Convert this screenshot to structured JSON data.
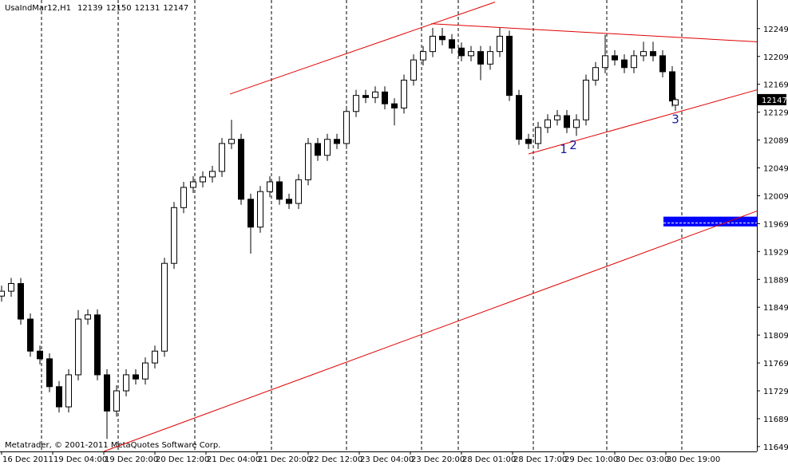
{
  "chart_data": {
    "type": "candlestick",
    "symbol": "UsaIndMar12,H1",
    "watermark": "Metatrader, © 2001-2011 MetaQuotes Software Corp.",
    "x": [
      0,
      3,
      6,
      9,
      12,
      15,
      18,
      21,
      24,
      27,
      30,
      33,
      36,
      39,
      42,
      45,
      48,
      51,
      54,
      57,
      60,
      63,
      66,
      69,
      72,
      75,
      78,
      81,
      84,
      87,
      90,
      93,
      96,
      99,
      102,
      105,
      108,
      111,
      114,
      117,
      120,
      123,
      126,
      129,
      132,
      135,
      138,
      141,
      144,
      147,
      150,
      153,
      156,
      159,
      162,
      165,
      168,
      171,
      174,
      177,
      180,
      183,
      186,
      189,
      192,
      195,
      198,
      201,
      204,
      207,
      210,
      211
    ],
    "open": [
      11865,
      11872,
      11883,
      11832,
      11786,
      11775,
      11735,
      11706,
      11752,
      11832,
      11838,
      11752,
      11700,
      11729,
      11752,
      11746,
      11769,
      11786,
      11912,
      11992,
      12021,
      12029,
      12036,
      12044,
      12084,
      12090,
      12004,
      11964,
      12015,
      12029,
      12004,
      11998,
      12032,
      12084,
      12067,
      12090,
      12084,
      12130,
      12153,
      12150,
      12158,
      12141,
      12135,
      12175,
      12204,
      12216,
      12238,
      12233,
      12221,
      12210,
      12216,
      12198,
      12216,
      12238,
      12153,
      12090,
      12084,
      12107,
      12118,
      12124,
      12107,
      12118,
      12175,
      12193,
      12210,
      12204,
      12193,
      12210,
      12216,
      12210,
      12187,
      12139
    ],
    "high": [
      11880,
      11891,
      11891,
      11840,
      11794,
      11783,
      11743,
      11760,
      11845,
      11846,
      11846,
      11760,
      11737,
      11760,
      11760,
      11777,
      11794,
      11920,
      12000,
      12029,
      12037,
      12044,
      12052,
      12092,
      12118,
      12098,
      12012,
      12023,
      12037,
      12037,
      12012,
      12040,
      12092,
      12092,
      12098,
      12098,
      12138,
      12161,
      12161,
      12166,
      12166,
      12149,
      12183,
      12212,
      12224,
      12250,
      12250,
      12241,
      12229,
      12224,
      12224,
      12224,
      12250,
      12246,
      12161,
      12098,
      12115,
      12126,
      12132,
      12132,
      12126,
      12183,
      12201,
      12240,
      12218,
      12212,
      12218,
      12230,
      12230,
      12218,
      12195,
      12150
    ],
    "low": [
      11857,
      11864,
      11824,
      11778,
      11767,
      11727,
      11698,
      11698,
      11744,
      11824,
      11744,
      11660,
      11692,
      11721,
      11738,
      11738,
      11761,
      11778,
      11904,
      11984,
      12013,
      12021,
      12028,
      12036,
      12076,
      11996,
      11926,
      11956,
      12007,
      11996,
      11990,
      11990,
      12024,
      12059,
      12059,
      12076,
      12076,
      12122,
      12142,
      12142,
      12133,
      12110,
      12127,
      12167,
      12196,
      12208,
      12225,
      12213,
      12202,
      12202,
      12175,
      12190,
      12208,
      12145,
      12082,
      12076,
      12076,
      12099,
      12110,
      12099,
      12095,
      12110,
      12167,
      12185,
      12196,
      12185,
      12185,
      12202,
      12202,
      12179,
      12137,
      12131
    ],
    "close": [
      11872,
      11883,
      11832,
      11786,
      11775,
      11735,
      11706,
      11752,
      11832,
      11838,
      11752,
      11700,
      11729,
      11752,
      11746,
      11769,
      11786,
      11912,
      11992,
      12021,
      12029,
      12036,
      12044,
      12084,
      12090,
      12004,
      11964,
      12015,
      12029,
      12004,
      11998,
      12032,
      12084,
      12067,
      12090,
      12084,
      12130,
      12153,
      12150,
      12158,
      12141,
      12135,
      12175,
      12204,
      12216,
      12238,
      12233,
      12221,
      12210,
      12216,
      12198,
      12216,
      12238,
      12153,
      12090,
      12084,
      12107,
      12118,
      12124,
      12107,
      12118,
      12175,
      12193,
      12210,
      12204,
      12193,
      12210,
      12216,
      12210,
      12187,
      12145,
      12147
    ],
    "up_color": "#ffffff",
    "down_color": "#000000",
    "wick_color": "#000000",
    "xlim": [
      0,
      236.5
    ],
    "xticks": [
      {
        "value": 0,
        "label": "16 Dec 2011"
      },
      {
        "value": 16,
        "label": "19 Dec 04:00"
      },
      {
        "value": 32,
        "label": "19 Dec 20:00"
      },
      {
        "value": 48,
        "label": "20 Dec 12:00"
      },
      {
        "value": 64,
        "label": "21 Dec 04:00"
      },
      {
        "value": 80,
        "label": "21 Dec 20:00"
      },
      {
        "value": 96,
        "label": "22 Dec 12:00"
      },
      {
        "value": 112,
        "label": "23 Dec 04:00"
      },
      {
        "value": 128,
        "label": "23 Dec 20:00"
      },
      {
        "value": 144,
        "label": "28 Dec 01:00"
      },
      {
        "value": 160,
        "label": "28 Dec 17:00"
      },
      {
        "value": 176,
        "label": "29 Dec 10:00"
      },
      {
        "value": 192,
        "label": "30 Dec 03:00"
      },
      {
        "value": 208,
        "label": "30 Dec 19:00"
      }
    ],
    "ylim": [
      11642,
      12290
    ],
    "yticks": [
      12249,
      12209,
      12169,
      12129,
      12089,
      12049,
      12009,
      11969,
      11929,
      11889,
      11849,
      11809,
      11769,
      11729,
      11689,
      11649
    ],
    "trendlines": [
      {
        "x": [
          71.5,
          154.5
        ],
        "y": [
          12155,
          12287
        ],
        "color": "#e00000"
      },
      {
        "x": [
          32,
          236.5
        ],
        "y": [
          11642,
          11987
        ],
        "color": "#e00000"
      },
      {
        "x": [
          134.5,
          236.5
        ],
        "y": [
          12256,
          12230
        ],
        "color": "#e00000"
      },
      {
        "x": [
          165,
          236.5
        ],
        "y": [
          12069,
          12161
        ],
        "color": "#e00000"
      }
    ],
    "zone": {
      "x": [
        207.25,
        236.5
      ],
      "y": [
        11965,
        11979
      ],
      "color": "#0000ff"
    },
    "annotations": [
      {
        "text": "1",
        "x": 176,
        "y": 12070
      },
      {
        "text": "2",
        "x": 179,
        "y": 12076
      },
      {
        "text": "3",
        "x": 211,
        "y": 12113
      }
    ]
  }
}
